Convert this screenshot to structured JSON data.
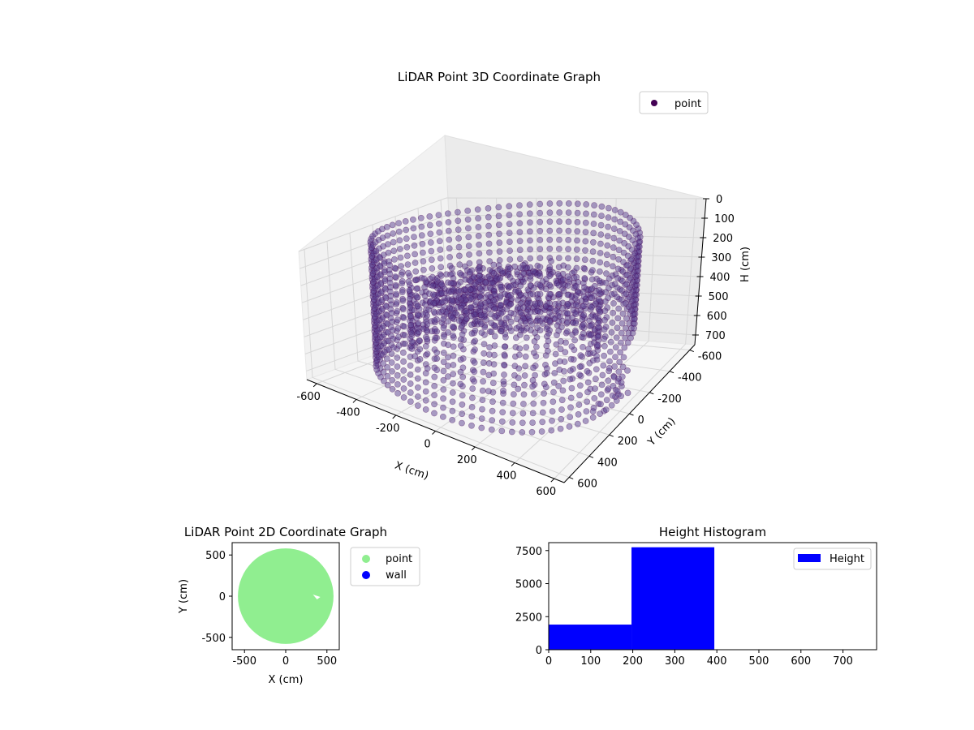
{
  "figure": {
    "background": "#ffffff"
  },
  "chart_data": [
    {
      "type": "scatter",
      "projection": "3d",
      "title": "LiDAR Point 3D Coordinate Graph",
      "xlabel": "X (cm)",
      "ylabel": "Y (cm)",
      "zlabel": "H (cm)",
      "xlim": [
        -650,
        650
      ],
      "ylim": [
        -650,
        650
      ],
      "zlim": [
        750,
        0
      ],
      "z_axis_inverted": true,
      "xticks": [
        -600,
        -400,
        -200,
        0,
        200,
        400,
        600
      ],
      "yticks": [
        -600,
        -400,
        -200,
        0,
        200,
        400,
        600
      ],
      "zticks": [
        0,
        100,
        200,
        300,
        400,
        500,
        600,
        700
      ],
      "grid": true,
      "legend": {
        "placement": "top-right",
        "entries": [
          "point"
        ]
      },
      "series": [
        {
          "name": "point",
          "color": "#440154",
          "fill_color": "#5a3f8f",
          "alpha": 0.5,
          "structure": {
            "outer_wall_radius": 580,
            "outer_wall_height_range": [
              0,
              700
            ],
            "outer_wall_gap_angle_deg": [
              -65,
              -5
            ],
            "inner_ring_radius": 420,
            "inner_ring_height_range": [
              250,
              550
            ],
            "floor_radius": 380,
            "floor_height": 250,
            "ceiling_cluster_height_range": [
              100,
              300
            ],
            "stray_points_x_range": [
              480,
              640
            ],
            "stray_points_height_range": [
              560,
              700
            ]
          }
        }
      ]
    },
    {
      "type": "scatter",
      "title": "LiDAR Point 2D Coordinate Graph",
      "xlabel": "X (cm)",
      "ylabel": "Y (cm)",
      "xlim": [
        -650,
        650
      ],
      "ylim": [
        -650,
        650
      ],
      "xticks": [
        -500,
        0,
        500
      ],
      "yticks": [
        -500,
        0,
        500
      ],
      "grid": false,
      "legend": {
        "placement": "outside-right",
        "entries": [
          "point",
          "wall"
        ]
      },
      "series": [
        {
          "name": "point",
          "color": "#90ee90",
          "shape": "filled-disc",
          "radius": 580
        },
        {
          "name": "wall",
          "color": "#0000ff",
          "points": []
        }
      ]
    },
    {
      "type": "bar",
      "subtype": "histogram",
      "title": "Height Histogram",
      "xlim": [
        0,
        780
      ],
      "ylim": [
        0,
        8100
      ],
      "xticks": [
        0,
        100,
        200,
        300,
        400,
        500,
        600,
        700
      ],
      "yticks": [
        0,
        2500,
        5000,
        7500
      ],
      "xticklabels": [
        "0",
        "100",
        "200",
        "300",
        "400",
        "500",
        "600",
        "700"
      ],
      "yticklabels": [
        "0",
        "2500",
        "5000",
        "7500"
      ],
      "grid": false,
      "legend": {
        "placement": "top-right",
        "entries": [
          "Height"
        ]
      },
      "series": [
        {
          "name": "Height",
          "color": "#0000ff",
          "bins": [
            {
              "from": 0,
              "to": 197,
              "count": 1900
            },
            {
              "from": 197,
              "to": 394,
              "count": 7750
            },
            {
              "from": 394,
              "to": 591,
              "count": 0
            },
            {
              "from": 591,
              "to": 788,
              "count": 0
            }
          ]
        }
      ]
    }
  ]
}
